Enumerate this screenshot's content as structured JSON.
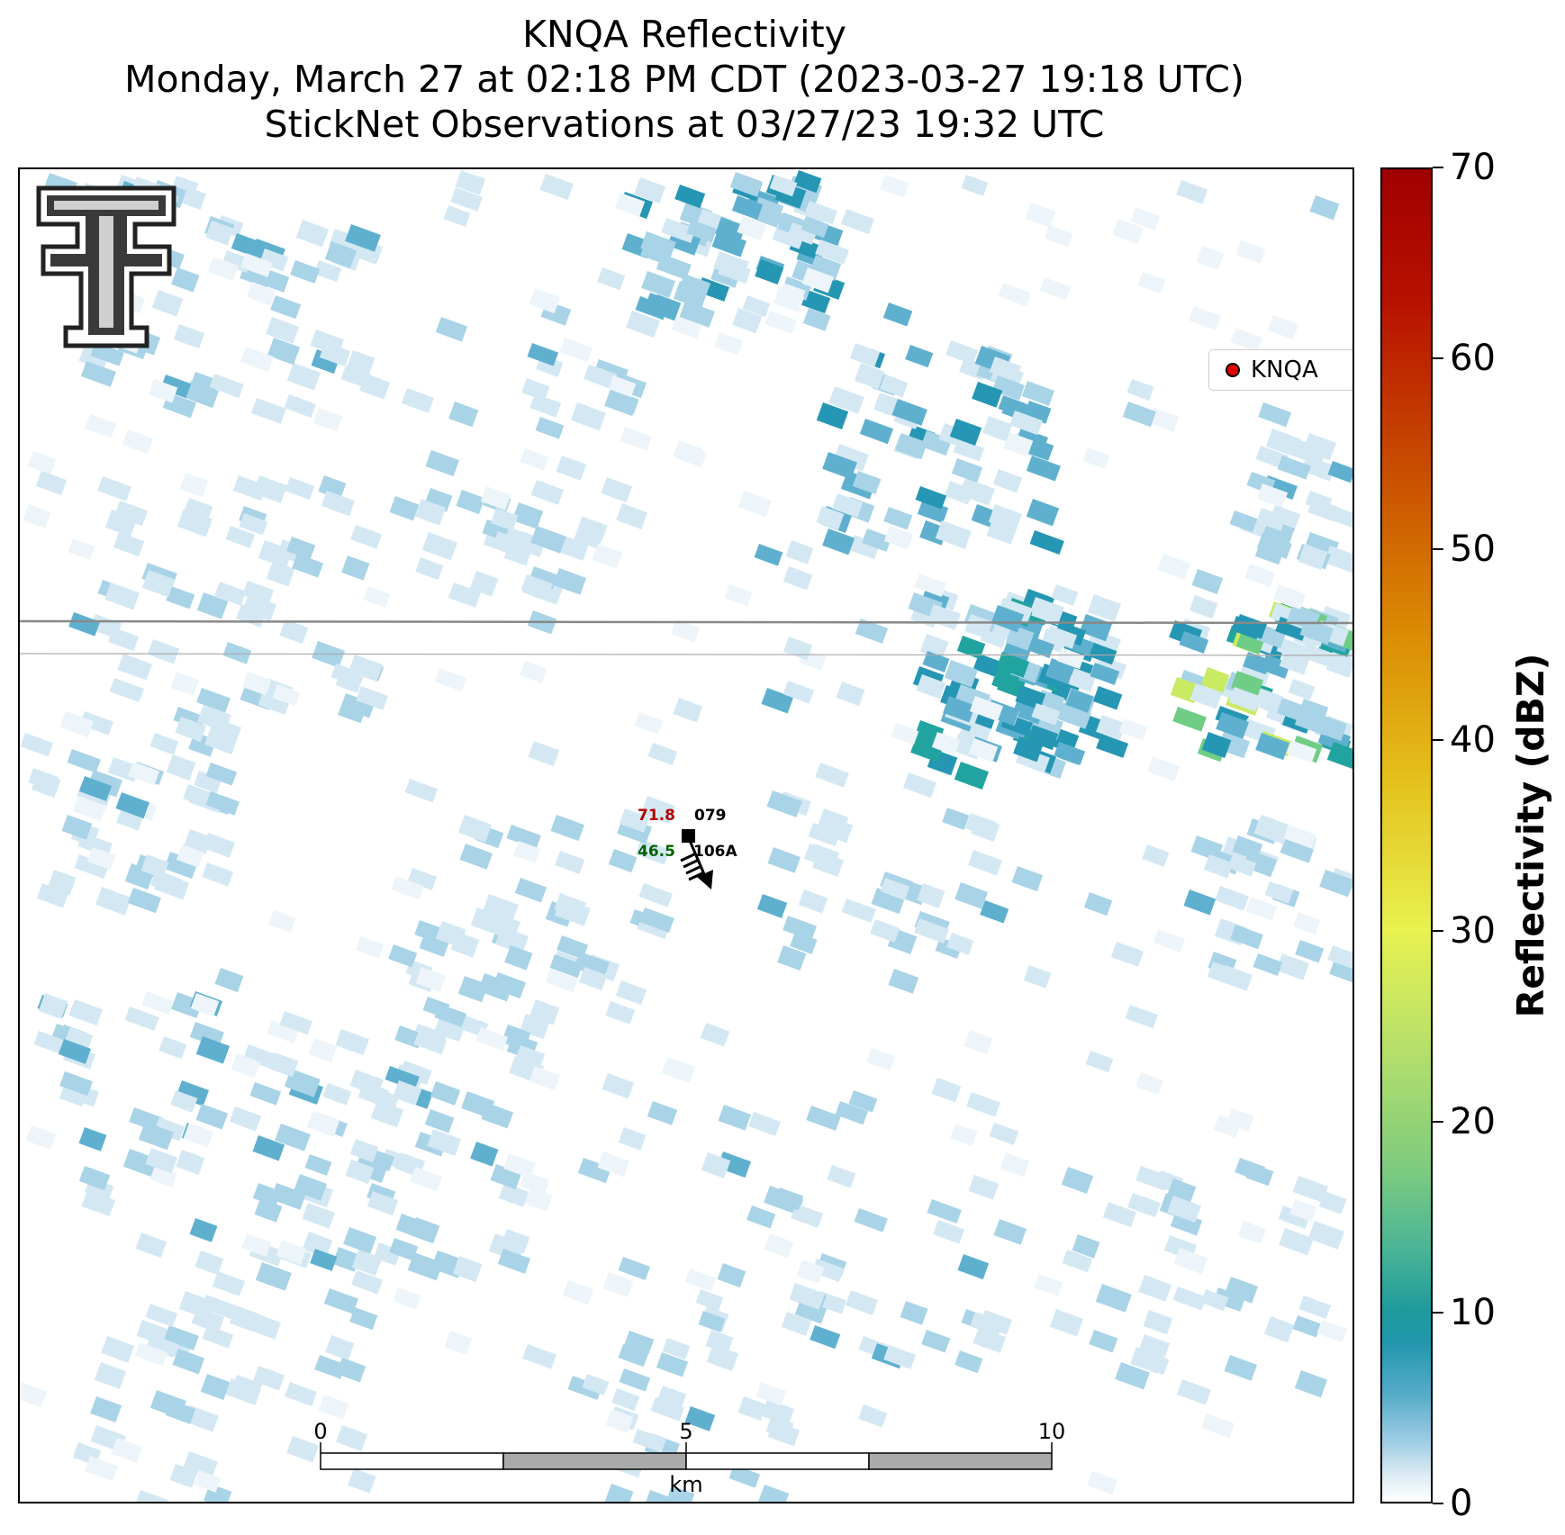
{
  "title": {
    "line1": "KNQA Reflectivity",
    "line2": "Monday, March 27 at 02:18 PM CDT (2023-03-27 19:18 UTC)",
    "line3": "StickNet Observations at 03/27/23 19:32 UTC"
  },
  "legend": {
    "label": "KNQA",
    "marker_color": "#e00000"
  },
  "station": {
    "id_top": "079",
    "id_bottom": "106A",
    "temperature": "71.8",
    "dewpoint": "46.5",
    "temperature_color": "#b00000",
    "dewpoint_color": "#006400"
  },
  "scale_bar": {
    "label_0": "0",
    "label_5": "5",
    "label_10": "10",
    "unit": "km"
  },
  "colorbar": {
    "title": "Reflectivity (dBZ)",
    "ticks": [
      "0",
      "10",
      "20",
      "30",
      "40",
      "50",
      "60",
      "70"
    ]
  },
  "logo": {
    "name": "Texas Tech Double T",
    "icon": "double-t-logo-icon"
  },
  "map_colors": {
    "very_light": "#d4e8f3",
    "light": "#a9d3e7",
    "medium": "#5fb0cf",
    "dark": "#2596b3",
    "teal": "#21a49f",
    "green": "#6fcd86",
    "yellow_green": "#c9ea63"
  }
}
